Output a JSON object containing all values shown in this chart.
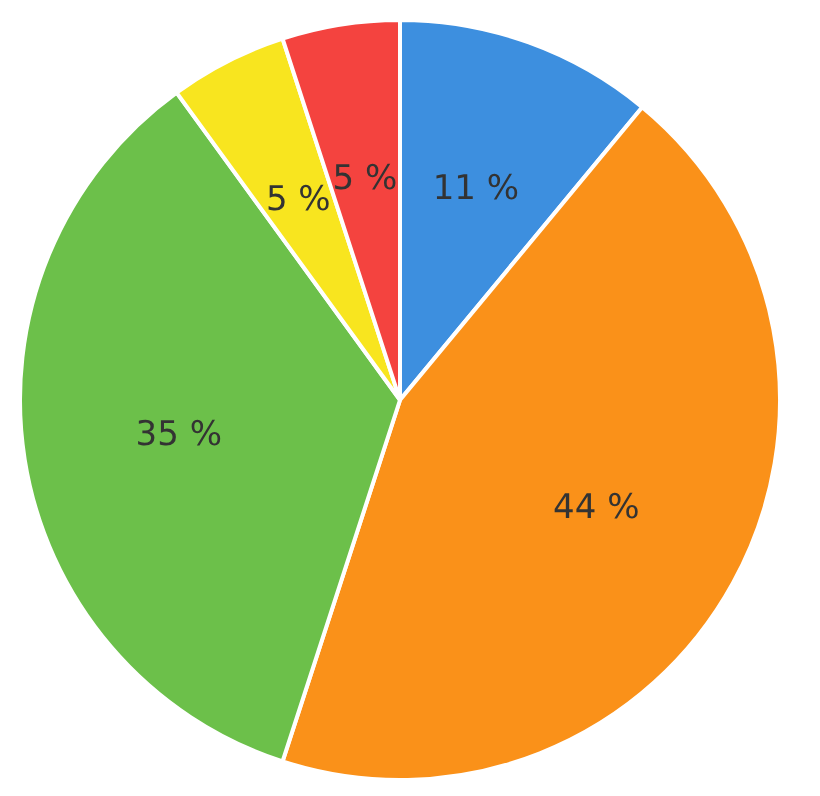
{
  "chart_data": {
    "type": "pie",
    "categories": [
      null,
      null,
      null,
      null,
      null
    ],
    "values": [
      11,
      44,
      35,
      5,
      5
    ],
    "colors": [
      "#3d8fdf",
      "#fa9119",
      "#6cc04a",
      "#f8e51f",
      "#f4433f"
    ],
    "value_labels": [
      "11 %",
      "44 %",
      "35 %",
      "5 %",
      "5 %"
    ],
    "legend": false
  }
}
